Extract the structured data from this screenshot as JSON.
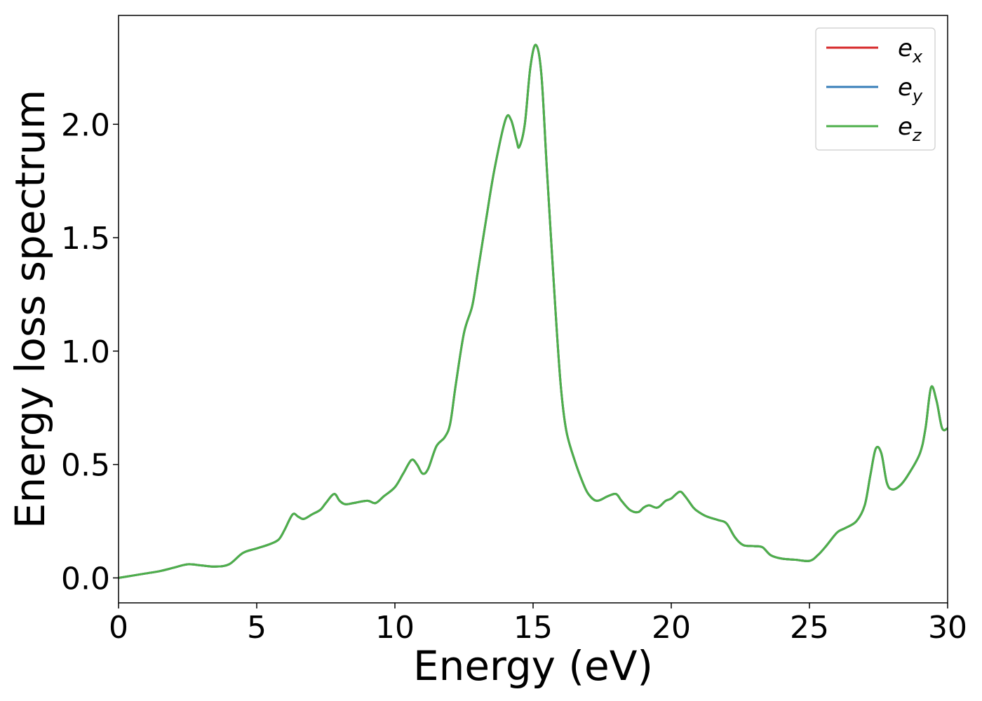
{
  "chart_data": {
    "type": "line",
    "title": "",
    "xlabel": "Energy (eV)",
    "ylabel": "Energy loss spectrum",
    "xlim": [
      0,
      30
    ],
    "ylim": [
      -0.11,
      2.48
    ],
    "xticks": [
      0,
      5,
      10,
      15,
      20,
      25,
      30
    ],
    "xtick_labels": [
      "0",
      "5",
      "10",
      "15",
      "20",
      "25",
      "30"
    ],
    "yticks": [
      0.0,
      0.5,
      1.0,
      1.5,
      2.0
    ],
    "ytick_labels": [
      "0.0",
      "0.5",
      "1.0",
      "1.5",
      "2.0"
    ],
    "grid": false,
    "legend_position": "top-right",
    "x": [
      0,
      0.5,
      1.0,
      1.5,
      2.0,
      2.5,
      3.0,
      3.5,
      4.0,
      4.5,
      5.0,
      5.5,
      5.8,
      6.0,
      6.3,
      6.5,
      6.7,
      7.0,
      7.3,
      7.5,
      7.8,
      8.0,
      8.2,
      8.5,
      9.0,
      9.3,
      9.6,
      10.0,
      10.3,
      10.6,
      10.8,
      11.0,
      11.2,
      11.5,
      11.8,
      12.0,
      12.2,
      12.5,
      12.8,
      13.0,
      13.3,
      13.6,
      14.0,
      14.2,
      14.4,
      14.5,
      14.7,
      14.9,
      15.1,
      15.3,
      15.5,
      15.8,
      16.0,
      16.2,
      16.5,
      16.8,
      17.0,
      17.3,
      17.7,
      18.0,
      18.2,
      18.5,
      18.8,
      19.0,
      19.2,
      19.5,
      19.8,
      20.0,
      20.3,
      20.5,
      20.8,
      21.0,
      21.3,
      21.7,
      22.0,
      22.3,
      22.6,
      23.0,
      23.3,
      23.6,
      24.0,
      24.5,
      25.0,
      25.3,
      25.6,
      26.0,
      26.3,
      26.7,
      27.0,
      27.2,
      27.4,
      27.6,
      27.8,
      28.0,
      28.3,
      28.6,
      29.0,
      29.2,
      29.4,
      29.6,
      29.8,
      30.0
    ],
    "series": [
      {
        "name": "e",
        "subscript": "x",
        "color": "#d62728",
        "values": [
          0.0,
          0.01,
          0.02,
          0.03,
          0.045,
          0.06,
          0.055,
          0.05,
          0.06,
          0.11,
          0.13,
          0.15,
          0.17,
          0.21,
          0.28,
          0.27,
          0.26,
          0.28,
          0.3,
          0.33,
          0.37,
          0.34,
          0.325,
          0.33,
          0.34,
          0.33,
          0.36,
          0.4,
          0.46,
          0.52,
          0.5,
          0.46,
          0.48,
          0.58,
          0.62,
          0.68,
          0.85,
          1.08,
          1.2,
          1.35,
          1.58,
          1.8,
          2.02,
          2.02,
          1.93,
          1.9,
          2.0,
          2.25,
          2.35,
          2.22,
          1.8,
          1.2,
          0.85,
          0.65,
          0.52,
          0.42,
          0.37,
          0.34,
          0.36,
          0.37,
          0.34,
          0.3,
          0.29,
          0.31,
          0.32,
          0.31,
          0.34,
          0.35,
          0.38,
          0.36,
          0.31,
          0.29,
          0.27,
          0.255,
          0.24,
          0.18,
          0.145,
          0.14,
          0.135,
          0.1,
          0.085,
          0.08,
          0.075,
          0.1,
          0.14,
          0.2,
          0.22,
          0.25,
          0.32,
          0.45,
          0.57,
          0.55,
          0.42,
          0.39,
          0.41,
          0.46,
          0.55,
          0.66,
          0.84,
          0.78,
          0.66,
          0.66
        ]
      },
      {
        "name": "e",
        "subscript": "y",
        "color": "#377eb8",
        "values": [
          0.0,
          0.01,
          0.02,
          0.03,
          0.045,
          0.06,
          0.055,
          0.05,
          0.06,
          0.11,
          0.13,
          0.15,
          0.17,
          0.21,
          0.28,
          0.27,
          0.26,
          0.28,
          0.3,
          0.33,
          0.37,
          0.34,
          0.325,
          0.33,
          0.34,
          0.33,
          0.36,
          0.4,
          0.46,
          0.52,
          0.5,
          0.46,
          0.48,
          0.58,
          0.62,
          0.68,
          0.85,
          1.08,
          1.2,
          1.35,
          1.58,
          1.8,
          2.02,
          2.02,
          1.93,
          1.9,
          2.0,
          2.25,
          2.35,
          2.22,
          1.8,
          1.2,
          0.85,
          0.65,
          0.52,
          0.42,
          0.37,
          0.34,
          0.36,
          0.37,
          0.34,
          0.3,
          0.29,
          0.31,
          0.32,
          0.31,
          0.34,
          0.35,
          0.38,
          0.36,
          0.31,
          0.29,
          0.27,
          0.255,
          0.24,
          0.18,
          0.145,
          0.14,
          0.135,
          0.1,
          0.085,
          0.08,
          0.075,
          0.1,
          0.14,
          0.2,
          0.22,
          0.25,
          0.32,
          0.45,
          0.57,
          0.55,
          0.42,
          0.39,
          0.41,
          0.46,
          0.55,
          0.66,
          0.84,
          0.78,
          0.66,
          0.66
        ]
      },
      {
        "name": "e",
        "subscript": "z",
        "color": "#4daf4a",
        "values": [
          0.0,
          0.01,
          0.02,
          0.03,
          0.045,
          0.06,
          0.055,
          0.05,
          0.06,
          0.11,
          0.13,
          0.15,
          0.17,
          0.21,
          0.28,
          0.27,
          0.26,
          0.28,
          0.3,
          0.33,
          0.37,
          0.34,
          0.325,
          0.33,
          0.34,
          0.33,
          0.36,
          0.4,
          0.46,
          0.52,
          0.5,
          0.46,
          0.48,
          0.58,
          0.62,
          0.68,
          0.85,
          1.08,
          1.2,
          1.35,
          1.58,
          1.8,
          2.02,
          2.02,
          1.93,
          1.9,
          2.0,
          2.25,
          2.35,
          2.22,
          1.8,
          1.2,
          0.85,
          0.65,
          0.52,
          0.42,
          0.37,
          0.34,
          0.36,
          0.37,
          0.34,
          0.3,
          0.29,
          0.31,
          0.32,
          0.31,
          0.34,
          0.35,
          0.38,
          0.36,
          0.31,
          0.29,
          0.27,
          0.255,
          0.24,
          0.18,
          0.145,
          0.14,
          0.135,
          0.1,
          0.085,
          0.08,
          0.075,
          0.1,
          0.14,
          0.2,
          0.22,
          0.25,
          0.32,
          0.45,
          0.57,
          0.55,
          0.42,
          0.39,
          0.41,
          0.46,
          0.55,
          0.66,
          0.84,
          0.78,
          0.66,
          0.66
        ]
      }
    ]
  }
}
